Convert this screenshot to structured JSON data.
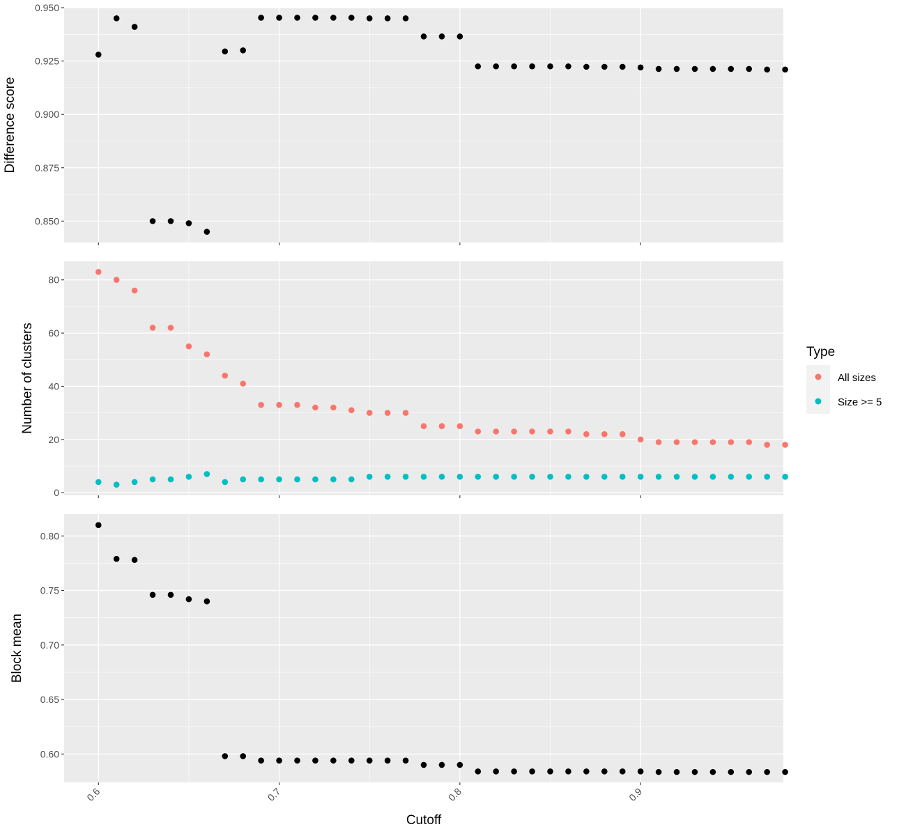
{
  "chart_data": [
    {
      "type": "scatter",
      "ylabel": "Difference score",
      "ylim": [
        0.84,
        0.95
      ],
      "yticks": [
        0.85,
        0.875,
        0.9,
        0.925,
        0.95
      ],
      "ytick_labels": [
        "0.850",
        "0.875",
        "0.900",
        "0.925",
        "0.950"
      ],
      "xlim": [
        0.581,
        0.979
      ],
      "series": [
        {
          "color": "#000000",
          "points": [
            [
              0.6,
              0.928
            ],
            [
              0.61,
              0.945
            ],
            [
              0.62,
              0.941
            ],
            [
              0.63,
              0.85
            ],
            [
              0.64,
              0.85
            ],
            [
              0.65,
              0.849
            ],
            [
              0.66,
              0.845
            ],
            [
              0.67,
              0.9295
            ],
            [
              0.68,
              0.93
            ],
            [
              0.69,
              0.9453
            ],
            [
              0.7,
              0.9453
            ],
            [
              0.71,
              0.9453
            ],
            [
              0.72,
              0.9453
            ],
            [
              0.73,
              0.9453
            ],
            [
              0.74,
              0.9453
            ],
            [
              0.75,
              0.945
            ],
            [
              0.76,
              0.945
            ],
            [
              0.77,
              0.945
            ],
            [
              0.78,
              0.9365
            ],
            [
              0.79,
              0.9365
            ],
            [
              0.8,
              0.9365
            ],
            [
              0.81,
              0.9225
            ],
            [
              0.82,
              0.9225
            ],
            [
              0.83,
              0.9225
            ],
            [
              0.84,
              0.9225
            ],
            [
              0.85,
              0.9225
            ],
            [
              0.86,
              0.9225
            ],
            [
              0.87,
              0.9223
            ],
            [
              0.88,
              0.9223
            ],
            [
              0.89,
              0.9223
            ],
            [
              0.9,
              0.922
            ],
            [
              0.91,
              0.9213
            ],
            [
              0.92,
              0.9213
            ],
            [
              0.93,
              0.9213
            ],
            [
              0.94,
              0.9213
            ],
            [
              0.95,
              0.9213
            ],
            [
              0.96,
              0.9213
            ],
            [
              0.97,
              0.921
            ],
            [
              0.98,
              0.921
            ]
          ]
        }
      ]
    },
    {
      "type": "scatter",
      "ylabel": "Number of clusters",
      "ylim": [
        -1,
        87
      ],
      "yticks": [
        0,
        20,
        40,
        60,
        80
      ],
      "ytick_labels": [
        "0",
        "20",
        "40",
        "60",
        "80"
      ],
      "xlim": [
        0.581,
        0.979
      ],
      "series": [
        {
          "name": "All sizes",
          "color": "#F8766D",
          "points": [
            [
              0.6,
              83
            ],
            [
              0.61,
              80
            ],
            [
              0.62,
              76
            ],
            [
              0.63,
              62
            ],
            [
              0.64,
              62
            ],
            [
              0.65,
              55
            ],
            [
              0.66,
              52
            ],
            [
              0.67,
              44
            ],
            [
              0.68,
              41
            ],
            [
              0.69,
              33
            ],
            [
              0.7,
              33
            ],
            [
              0.71,
              33
            ],
            [
              0.72,
              32
            ],
            [
              0.73,
              32
            ],
            [
              0.74,
              31
            ],
            [
              0.75,
              30
            ],
            [
              0.76,
              30
            ],
            [
              0.77,
              30
            ],
            [
              0.78,
              25
            ],
            [
              0.79,
              25
            ],
            [
              0.8,
              25
            ],
            [
              0.81,
              23
            ],
            [
              0.82,
              23
            ],
            [
              0.83,
              23
            ],
            [
              0.84,
              23
            ],
            [
              0.85,
              23
            ],
            [
              0.86,
              23
            ],
            [
              0.87,
              22
            ],
            [
              0.88,
              22
            ],
            [
              0.89,
              22
            ],
            [
              0.9,
              20
            ],
            [
              0.91,
              19
            ],
            [
              0.92,
              19
            ],
            [
              0.93,
              19
            ],
            [
              0.94,
              19
            ],
            [
              0.95,
              19
            ],
            [
              0.96,
              19
            ],
            [
              0.97,
              18
            ],
            [
              0.98,
              18
            ]
          ]
        },
        {
          "name": "Size >= 5",
          "color": "#00BFC4",
          "points": [
            [
              0.6,
              4
            ],
            [
              0.61,
              3
            ],
            [
              0.62,
              4
            ],
            [
              0.63,
              5
            ],
            [
              0.64,
              5
            ],
            [
              0.65,
              6
            ],
            [
              0.66,
              7
            ],
            [
              0.67,
              4
            ],
            [
              0.68,
              5
            ],
            [
              0.69,
              5
            ],
            [
              0.7,
              5
            ],
            [
              0.71,
              5
            ],
            [
              0.72,
              5
            ],
            [
              0.73,
              5
            ],
            [
              0.74,
              5
            ],
            [
              0.75,
              6
            ],
            [
              0.76,
              6
            ],
            [
              0.77,
              6
            ],
            [
              0.78,
              6
            ],
            [
              0.79,
              6
            ],
            [
              0.8,
              6
            ],
            [
              0.81,
              6
            ],
            [
              0.82,
              6
            ],
            [
              0.83,
              6
            ],
            [
              0.84,
              6
            ],
            [
              0.85,
              6
            ],
            [
              0.86,
              6
            ],
            [
              0.87,
              6
            ],
            [
              0.88,
              6
            ],
            [
              0.89,
              6
            ],
            [
              0.9,
              6
            ],
            [
              0.91,
              6
            ],
            [
              0.92,
              6
            ],
            [
              0.93,
              6
            ],
            [
              0.94,
              6
            ],
            [
              0.95,
              6
            ],
            [
              0.96,
              6
            ],
            [
              0.97,
              6
            ],
            [
              0.98,
              6
            ]
          ]
        }
      ]
    },
    {
      "type": "scatter",
      "ylabel": "Block mean",
      "ylim": [
        0.574,
        0.82
      ],
      "yticks": [
        0.6,
        0.65,
        0.7,
        0.75,
        0.8
      ],
      "ytick_labels": [
        "0.60",
        "0.65",
        "0.70",
        "0.75",
        "0.80"
      ],
      "xlim": [
        0.581,
        0.979
      ],
      "series": [
        {
          "color": "#000000",
          "points": [
            [
              0.6,
              0.81
            ],
            [
              0.61,
              0.779
            ],
            [
              0.62,
              0.778
            ],
            [
              0.63,
              0.746
            ],
            [
              0.64,
              0.746
            ],
            [
              0.65,
              0.742
            ],
            [
              0.66,
              0.74
            ],
            [
              0.67,
              0.598
            ],
            [
              0.68,
              0.598
            ],
            [
              0.69,
              0.594
            ],
            [
              0.7,
              0.594
            ],
            [
              0.71,
              0.594
            ],
            [
              0.72,
              0.594
            ],
            [
              0.73,
              0.594
            ],
            [
              0.74,
              0.594
            ],
            [
              0.75,
              0.594
            ],
            [
              0.76,
              0.594
            ],
            [
              0.77,
              0.594
            ],
            [
              0.78,
              0.59
            ],
            [
              0.79,
              0.59
            ],
            [
              0.8,
              0.59
            ],
            [
              0.81,
              0.584
            ],
            [
              0.82,
              0.584
            ],
            [
              0.83,
              0.584
            ],
            [
              0.84,
              0.584
            ],
            [
              0.85,
              0.584
            ],
            [
              0.86,
              0.584
            ],
            [
              0.87,
              0.584
            ],
            [
              0.88,
              0.584
            ],
            [
              0.89,
              0.584
            ],
            [
              0.9,
              0.584
            ],
            [
              0.91,
              0.5835
            ],
            [
              0.92,
              0.5835
            ],
            [
              0.93,
              0.5835
            ],
            [
              0.94,
              0.5835
            ],
            [
              0.95,
              0.5835
            ],
            [
              0.96,
              0.5835
            ],
            [
              0.97,
              0.5835
            ],
            [
              0.98,
              0.5835
            ]
          ]
        }
      ]
    }
  ],
  "x_axis": {
    "title": "Cutoff",
    "ticks": [
      0.6,
      0.7,
      0.8,
      0.9
    ],
    "tick_labels": [
      "0.6",
      "0.7",
      "0.8",
      "0.9"
    ]
  },
  "legend": {
    "title": "Type",
    "placement": "right",
    "items": [
      {
        "label": "All sizes",
        "color": "#F8766D"
      },
      {
        "label": "Size >= 5",
        "color": "#00BFC4"
      }
    ]
  },
  "colors": {
    "panel_background": "#EBEBEB",
    "grid": "#FFFFFF",
    "point_default": "#000000"
  }
}
